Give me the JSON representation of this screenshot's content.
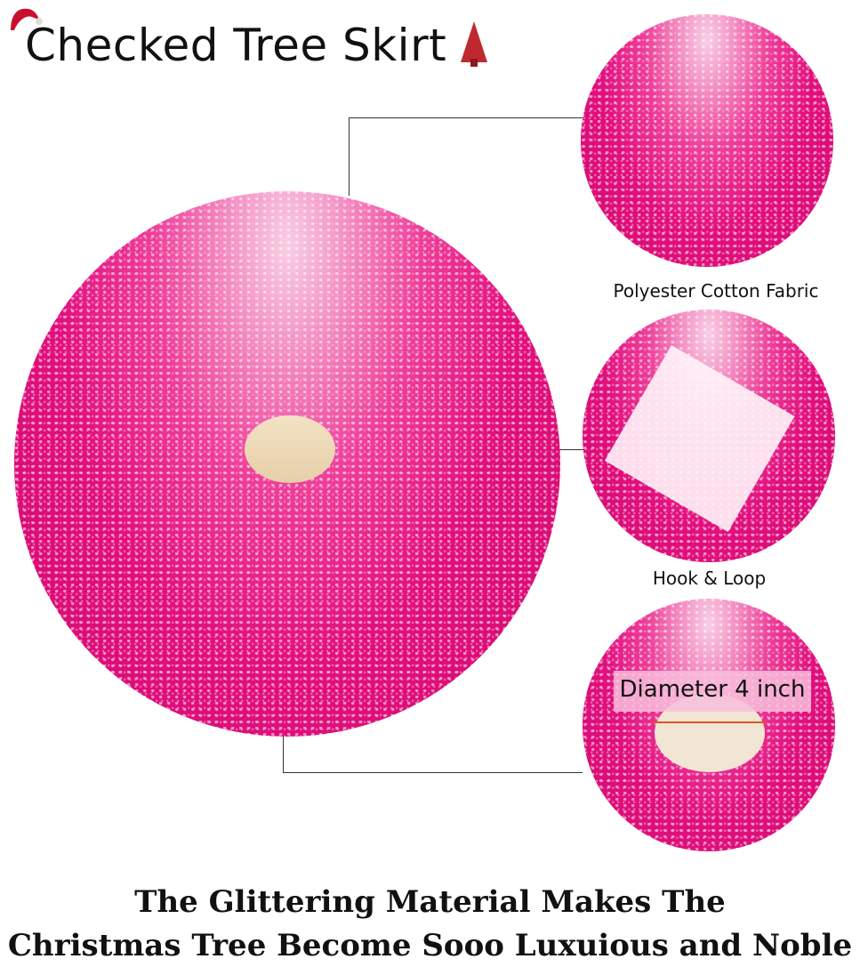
{
  "title": "Checked Tree Skirt",
  "labels": {
    "fabric": "Polyester Cotton Fabric",
    "closure": "Hook & Loop",
    "diameter": "Diameter 4  inch"
  },
  "caption": {
    "line1": "The Glittering Material Makes The",
    "line2": "Christmas Tree Become Sooo Luxuious and Noble"
  },
  "colors": {
    "accent": "#e20f7d",
    "hole": "#eed9b6"
  }
}
